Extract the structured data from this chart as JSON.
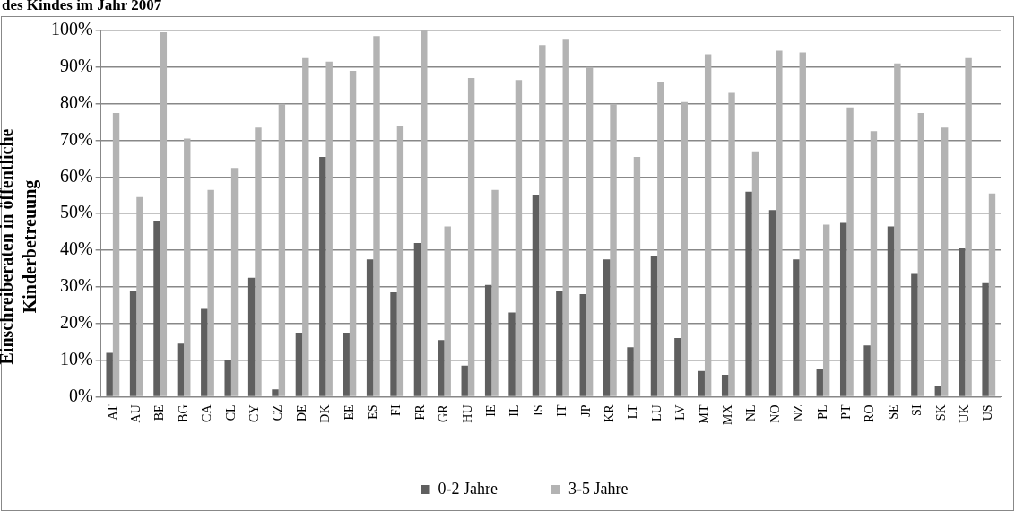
{
  "chart_data": {
    "type": "bar",
    "title": "des Kindes im Jahr 2007",
    "ylabel": "Einschreiberaten in öffentliche Kinderbetreuung",
    "categories": [
      "AT",
      "AU",
      "BE",
      "BG",
      "CA",
      "CL",
      "CY",
      "CZ",
      "DE",
      "DK",
      "EE",
      "ES",
      "FI",
      "FR",
      "GR",
      "HU",
      "IE",
      "IL",
      "IS",
      "IT",
      "JP",
      "KR",
      "LT",
      "LU",
      "LV",
      "MT",
      "MX",
      "NL",
      "NO",
      "NZ",
      "PL",
      "PT",
      "RO",
      "SE",
      "SI",
      "SK",
      "UK",
      "US"
    ],
    "series": [
      {
        "name": "0-2 Jahre",
        "color": "#5f5f5f",
        "values": [
          12,
          29,
          48,
          14.5,
          24,
          10,
          32.5,
          2,
          17.5,
          65.5,
          17.5,
          37.5,
          28.5,
          42,
          15.5,
          8.5,
          30.5,
          23,
          55,
          29,
          28,
          37.5,
          13.5,
          38.5,
          16,
          7,
          6,
          56,
          51,
          37.5,
          7.5,
          47.5,
          14,
          46.5,
          33.5,
          3,
          40.5,
          31
        ]
      },
      {
        "name": "3-5 Jahre",
        "color": "#b3b3b3",
        "values": [
          77.5,
          54.5,
          99.5,
          70.5,
          56.5,
          62.5,
          73.5,
          80,
          92.5,
          91.5,
          89,
          98.5,
          74,
          100,
          46.5,
          87,
          56.5,
          86.5,
          96,
          97.5,
          90,
          80,
          65.5,
          86,
          80.5,
          93.5,
          83,
          67,
          94.5,
          94,
          47,
          79,
          72.5,
          91,
          77.5,
          73.5,
          92.5,
          55.5
        ]
      }
    ],
    "ylim": [
      0,
      100
    ],
    "yticks": [
      {
        "value": 0,
        "label": "0%"
      },
      {
        "value": 10,
        "label": "10%"
      },
      {
        "value": 20,
        "label": "20%"
      },
      {
        "value": 30,
        "label": "30%"
      },
      {
        "value": 40,
        "label": "40%"
      },
      {
        "value": 50,
        "label": "50%"
      },
      {
        "value": 60,
        "label": "60%"
      },
      {
        "value": 70,
        "label": "70%"
      },
      {
        "value": 80,
        "label": "80%"
      },
      {
        "value": 90,
        "label": "90%"
      },
      {
        "value": 100,
        "label": "100%"
      }
    ],
    "grid": "y",
    "legend": "bottom"
  }
}
